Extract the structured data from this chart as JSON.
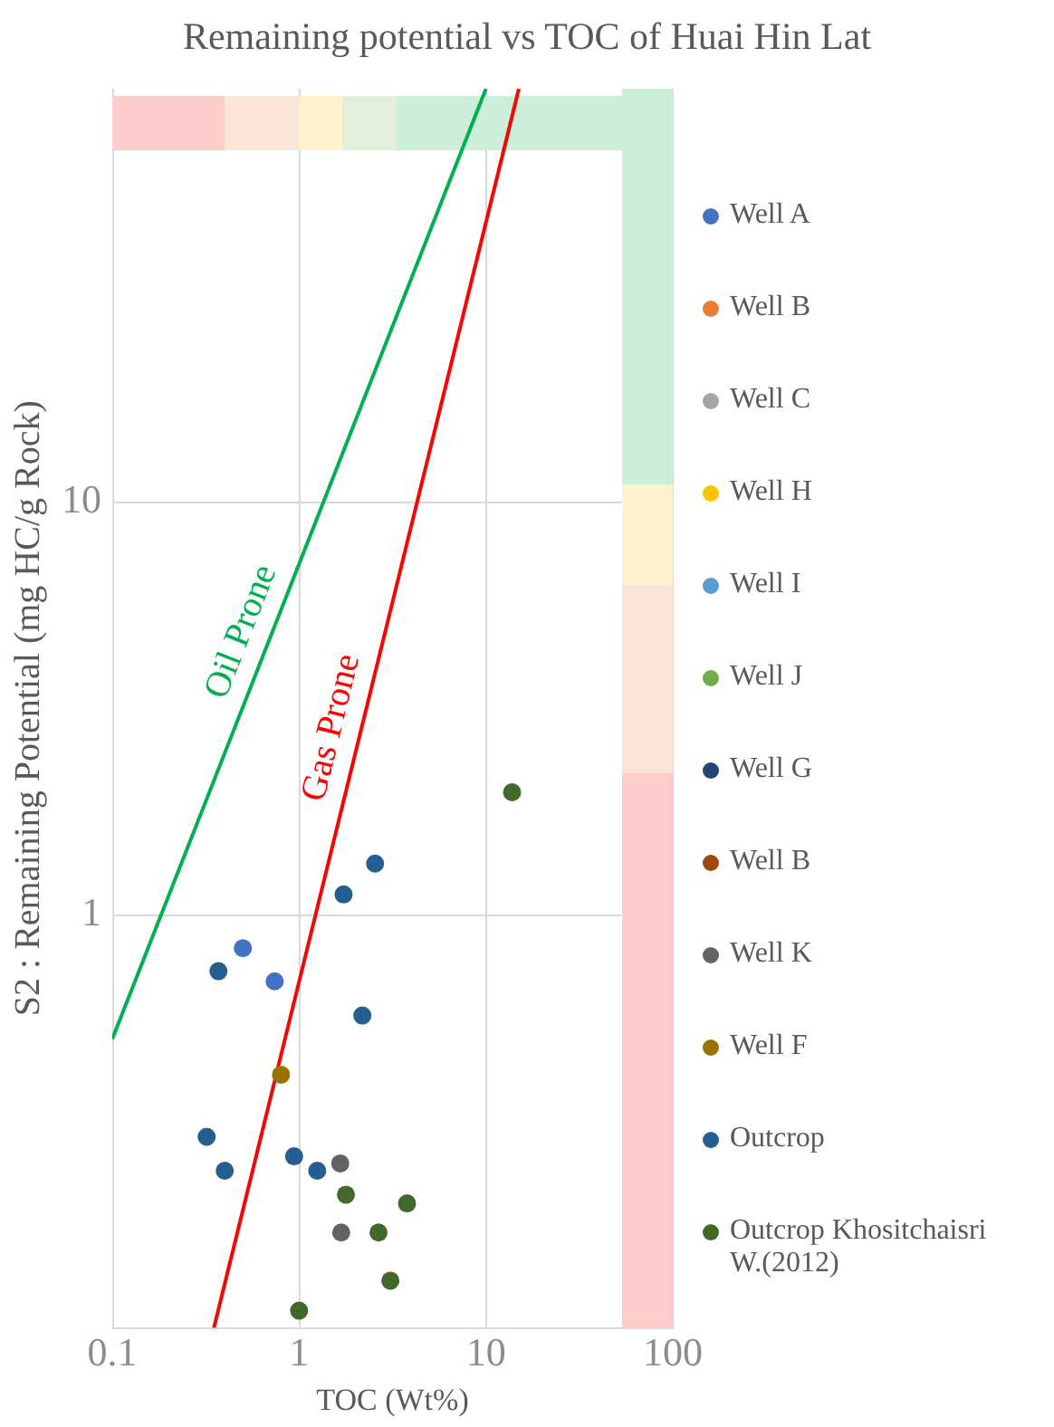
{
  "chart_data": {
    "type": "scatter",
    "title": "Remaining potential vs TOC of Huai Hin Lat",
    "xlabel": "TOC (Wt%)",
    "ylabel": "S2 : Remaining Potential (mg HC/g Rock)",
    "log": "xy",
    "xlim": [
      0.1,
      100
    ],
    "xticks": [
      0.1,
      1,
      10,
      100
    ],
    "ylim": [
      0.1,
      100
    ],
    "yticks": [
      1,
      10
    ],
    "grid": true,
    "legend": "right",
    "marker": "circle",
    "series": [
      {
        "name": "Well A",
        "color": "#4472c4",
        "x": [
          0.5,
          0.74
        ],
        "values": [
          0.83,
          0.69
        ]
      },
      {
        "name": "Well B",
        "color": "#ed7d31"
      },
      {
        "name": "Well C",
        "color": "#a5a5a5"
      },
      {
        "name": "Well H",
        "color": "#ffc000"
      },
      {
        "name": "Well I",
        "color": "#5b9bd5"
      },
      {
        "name": "Well J",
        "color": "#70ad47"
      },
      {
        "name": "Well G",
        "color": "#264478"
      },
      {
        "name": "Well B",
        "color": "#9e480e"
      },
      {
        "name": "Well K",
        "color": "#636363",
        "x": [
          1.66,
          1.68
        ],
        "values": [
          0.25,
          0.17
        ]
      },
      {
        "name": "Well F",
        "color": "#997300",
        "x": [
          0.8
        ],
        "values": [
          0.41
        ]
      },
      {
        "name": "Outcrop",
        "color": "#255e91",
        "x": [
          0.37,
          2.55,
          1.73,
          2.18,
          0.32,
          0.4,
          0.94,
          1.25
        ],
        "values": [
          0.73,
          1.33,
          1.12,
          0.57,
          0.29,
          0.24,
          0.26,
          0.24
        ]
      },
      {
        "name": "Outcrop Khositchaisri W.(2012)",
        "color": "#43682b",
        "x": [
          13.8,
          1.78,
          3.78,
          2.66,
          3.08,
          1.0
        ],
        "values": [
          1.98,
          0.21,
          0.2,
          0.17,
          0.13,
          0.11
        ]
      },
      {
        "type": "line",
        "marker": "none",
        "color": "#00b050",
        "x": [
          0.1,
          10
        ],
        "values": [
          0.5,
          100
        ]
      },
      {
        "type": "line",
        "marker": "none",
        "color": "#ff0000",
        "x": [
          0.35,
          15
        ],
        "values": [
          0.1,
          100
        ]
      }
    ],
    "bands": [
      {
        "axis": "x",
        "from": 0.1,
        "to": 0.4,
        "color": "#ffcccc"
      },
      {
        "axis": "x",
        "from": 0.4,
        "to": 1,
        "color": "#fbe5d6"
      },
      {
        "axis": "x",
        "from": 1,
        "to": 1.7,
        "color": "#fff2cc"
      },
      {
        "axis": "x",
        "from": 1.7,
        "to": 3.3,
        "color": "#e2f0d9"
      },
      {
        "axis": "x",
        "from": 3.3,
        "to": 100,
        "color": "#cdeedb"
      },
      {
        "axis": "y",
        "from": 0.1,
        "to": 2.2,
        "color": "#ffcccc"
      },
      {
        "axis": "y",
        "from": 2.2,
        "to": 6.3,
        "color": "#fbe5d6"
      },
      {
        "axis": "y",
        "from": 6.3,
        "to": 11,
        "color": "#fff2cc"
      },
      {
        "axis": "y",
        "from": 11,
        "to": 100,
        "color": "#cdeedb"
      }
    ],
    "annotations": [
      "Oil Prone",
      "Gas Prone"
    ]
  }
}
